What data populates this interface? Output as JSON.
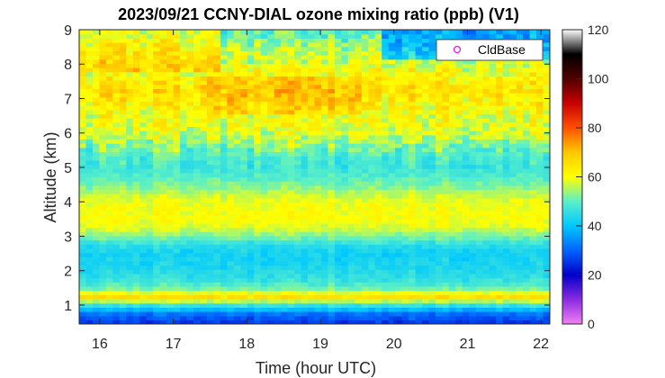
{
  "chart_data": {
    "type": "heatmap",
    "title": "2023/09/21 CCNY-DIAL ozone mixing ratio (ppb) (V1)",
    "xlabel": "Time (hour UTC)",
    "ylabel": "Altitude (km)",
    "xlim": [
      15.72,
      22.12
    ],
    "ylim": [
      0.45,
      9.0
    ],
    "xticks": [
      16,
      17,
      18,
      19,
      20,
      21,
      22
    ],
    "yticks": [
      1,
      2,
      3,
      4,
      5,
      6,
      7,
      8,
      9
    ],
    "colorbar": {
      "range": [
        0,
        120
      ],
      "ticks": [
        0,
        20,
        40,
        60,
        80,
        100,
        120
      ],
      "colormap": "jet-extended",
      "stops": [
        "#f080f0",
        "#8a2be2",
        "#0000c8",
        "#0064ff",
        "#00c8ff",
        "#5af0c8",
        "#ffff00",
        "#ffc800",
        "#ff5000",
        "#c80000",
        "#500000",
        "#000000",
        "#ffffff"
      ]
    },
    "legend": {
      "entries": [
        "CldBase"
      ],
      "marker": "circle",
      "marker_color": "#ff00ff",
      "position": "top-right"
    },
    "x": [
      15.75,
      16.0,
      16.25,
      16.5,
      16.75,
      17.0,
      17.25,
      17.5,
      17.75,
      18.0,
      18.25,
      18.5,
      18.75,
      19.0,
      19.25,
      19.5,
      19.75,
      20.0,
      20.25,
      20.5,
      20.75,
      21.0,
      21.25,
      21.5,
      21.75,
      22.0
    ],
    "y": [
      0.5,
      0.75,
      1.0,
      1.25,
      1.5,
      1.75,
      2.0,
      2.25,
      2.5,
      2.75,
      3.0,
      3.25,
      3.5,
      3.75,
      4.0,
      4.25,
      4.5,
      4.75,
      5.0,
      5.25,
      5.5,
      5.75,
      6.0,
      6.25,
      6.5,
      6.75,
      7.0,
      7.25,
      7.5,
      7.75,
      8.0,
      8.25,
      8.5,
      8.75,
      9.0
    ],
    "z_profile_ppb": [
      26,
      31,
      46,
      66,
      51,
      46,
      44,
      43,
      42,
      45,
      52,
      58,
      60,
      60,
      59,
      56,
      52,
      49,
      47,
      48,
      51,
      55,
      58,
      59,
      60,
      62,
      64,
      65,
      63,
      61,
      58,
      57,
      55,
      52,
      50
    ],
    "notes_visible": "ozone maxima near 1.25 km, 3.5 km, 7 km and 8.4 km (upper-left); minima below 1 km and near 2.5 km"
  }
}
